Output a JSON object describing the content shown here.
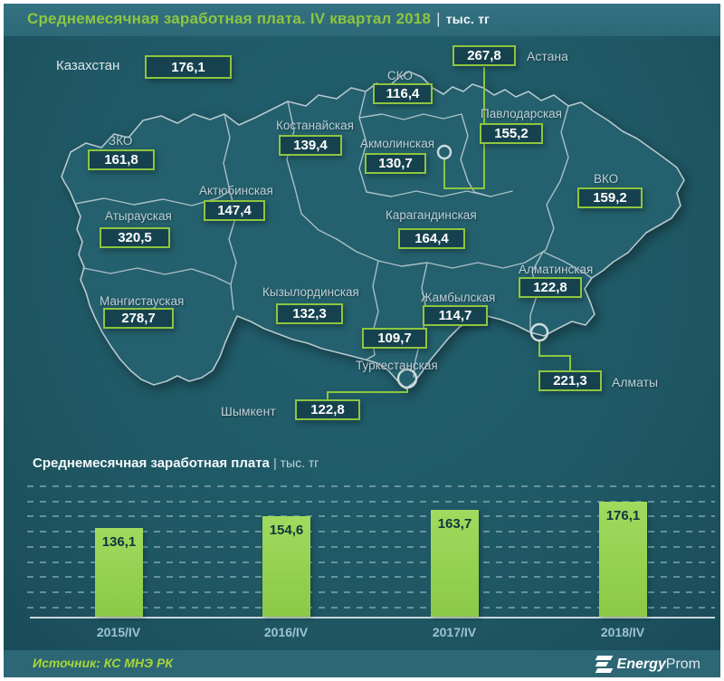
{
  "header": {
    "title": "Среднемесячная заработная плата. IV квартал 2018",
    "separator": "|",
    "unit": "тыс. тг"
  },
  "chart_data": [
    {
      "type": "map",
      "title": "Среднемесячная заработная плата. IV квартал 2018",
      "unit": "тыс. тг",
      "country": {
        "name": "Казахстан",
        "value": "176,1"
      },
      "regions": [
        {
          "name": "СКО",
          "value": "116,4"
        },
        {
          "name": "Костанайская",
          "value": "139,4"
        },
        {
          "name": "Акмолинская",
          "value": "130,7"
        },
        {
          "name": "Павлодарская",
          "value": "155,2"
        },
        {
          "name": "ЗКО",
          "value": "161,8"
        },
        {
          "name": "Актюбинская",
          "value": "147,4"
        },
        {
          "name": "Атырауская",
          "value": "320,5"
        },
        {
          "name": "Мангистауская",
          "value": "278,7"
        },
        {
          "name": "Карагандинская",
          "value": "164,4"
        },
        {
          "name": "ВКО",
          "value": "159,2"
        },
        {
          "name": "Кызылординская",
          "value": "132,3"
        },
        {
          "name": "Жамбылская",
          "value": "114,7"
        },
        {
          "name": "Туркестанская",
          "value": "109,7"
        },
        {
          "name": "Алматинская",
          "value": "122,8"
        }
      ],
      "cities": [
        {
          "name": "Астана",
          "value": "267,8"
        },
        {
          "name": "Шымкент",
          "value": "122,8"
        },
        {
          "name": "Алматы",
          "value": "221,3"
        }
      ]
    },
    {
      "type": "bar",
      "title": "Среднемесячная заработная плата",
      "unit": "тыс. тг",
      "categories": [
        "2015/IV",
        "2016/IV",
        "2017/IV",
        "2018/IV"
      ],
      "values": [
        136.1,
        154.6,
        163.7,
        176.1
      ],
      "labels": [
        "136,1",
        "154,6",
        "163,7",
        "176,1"
      ],
      "ylim": [
        0,
        250
      ],
      "grid": "dashed-horizontal",
      "bar_color": "#95d14e"
    }
  ],
  "colors": {
    "accent_green": "#8dc63f",
    "bar_green": "#95d14e",
    "background": "#215a66",
    "panel": "#2d6775",
    "box_fill": "#16424f",
    "text_light": "#bdd0d7"
  },
  "footer": {
    "source": "Источник: КС МНЭ РК",
    "brand_bold": "Energy",
    "brand_light": "Prom"
  }
}
